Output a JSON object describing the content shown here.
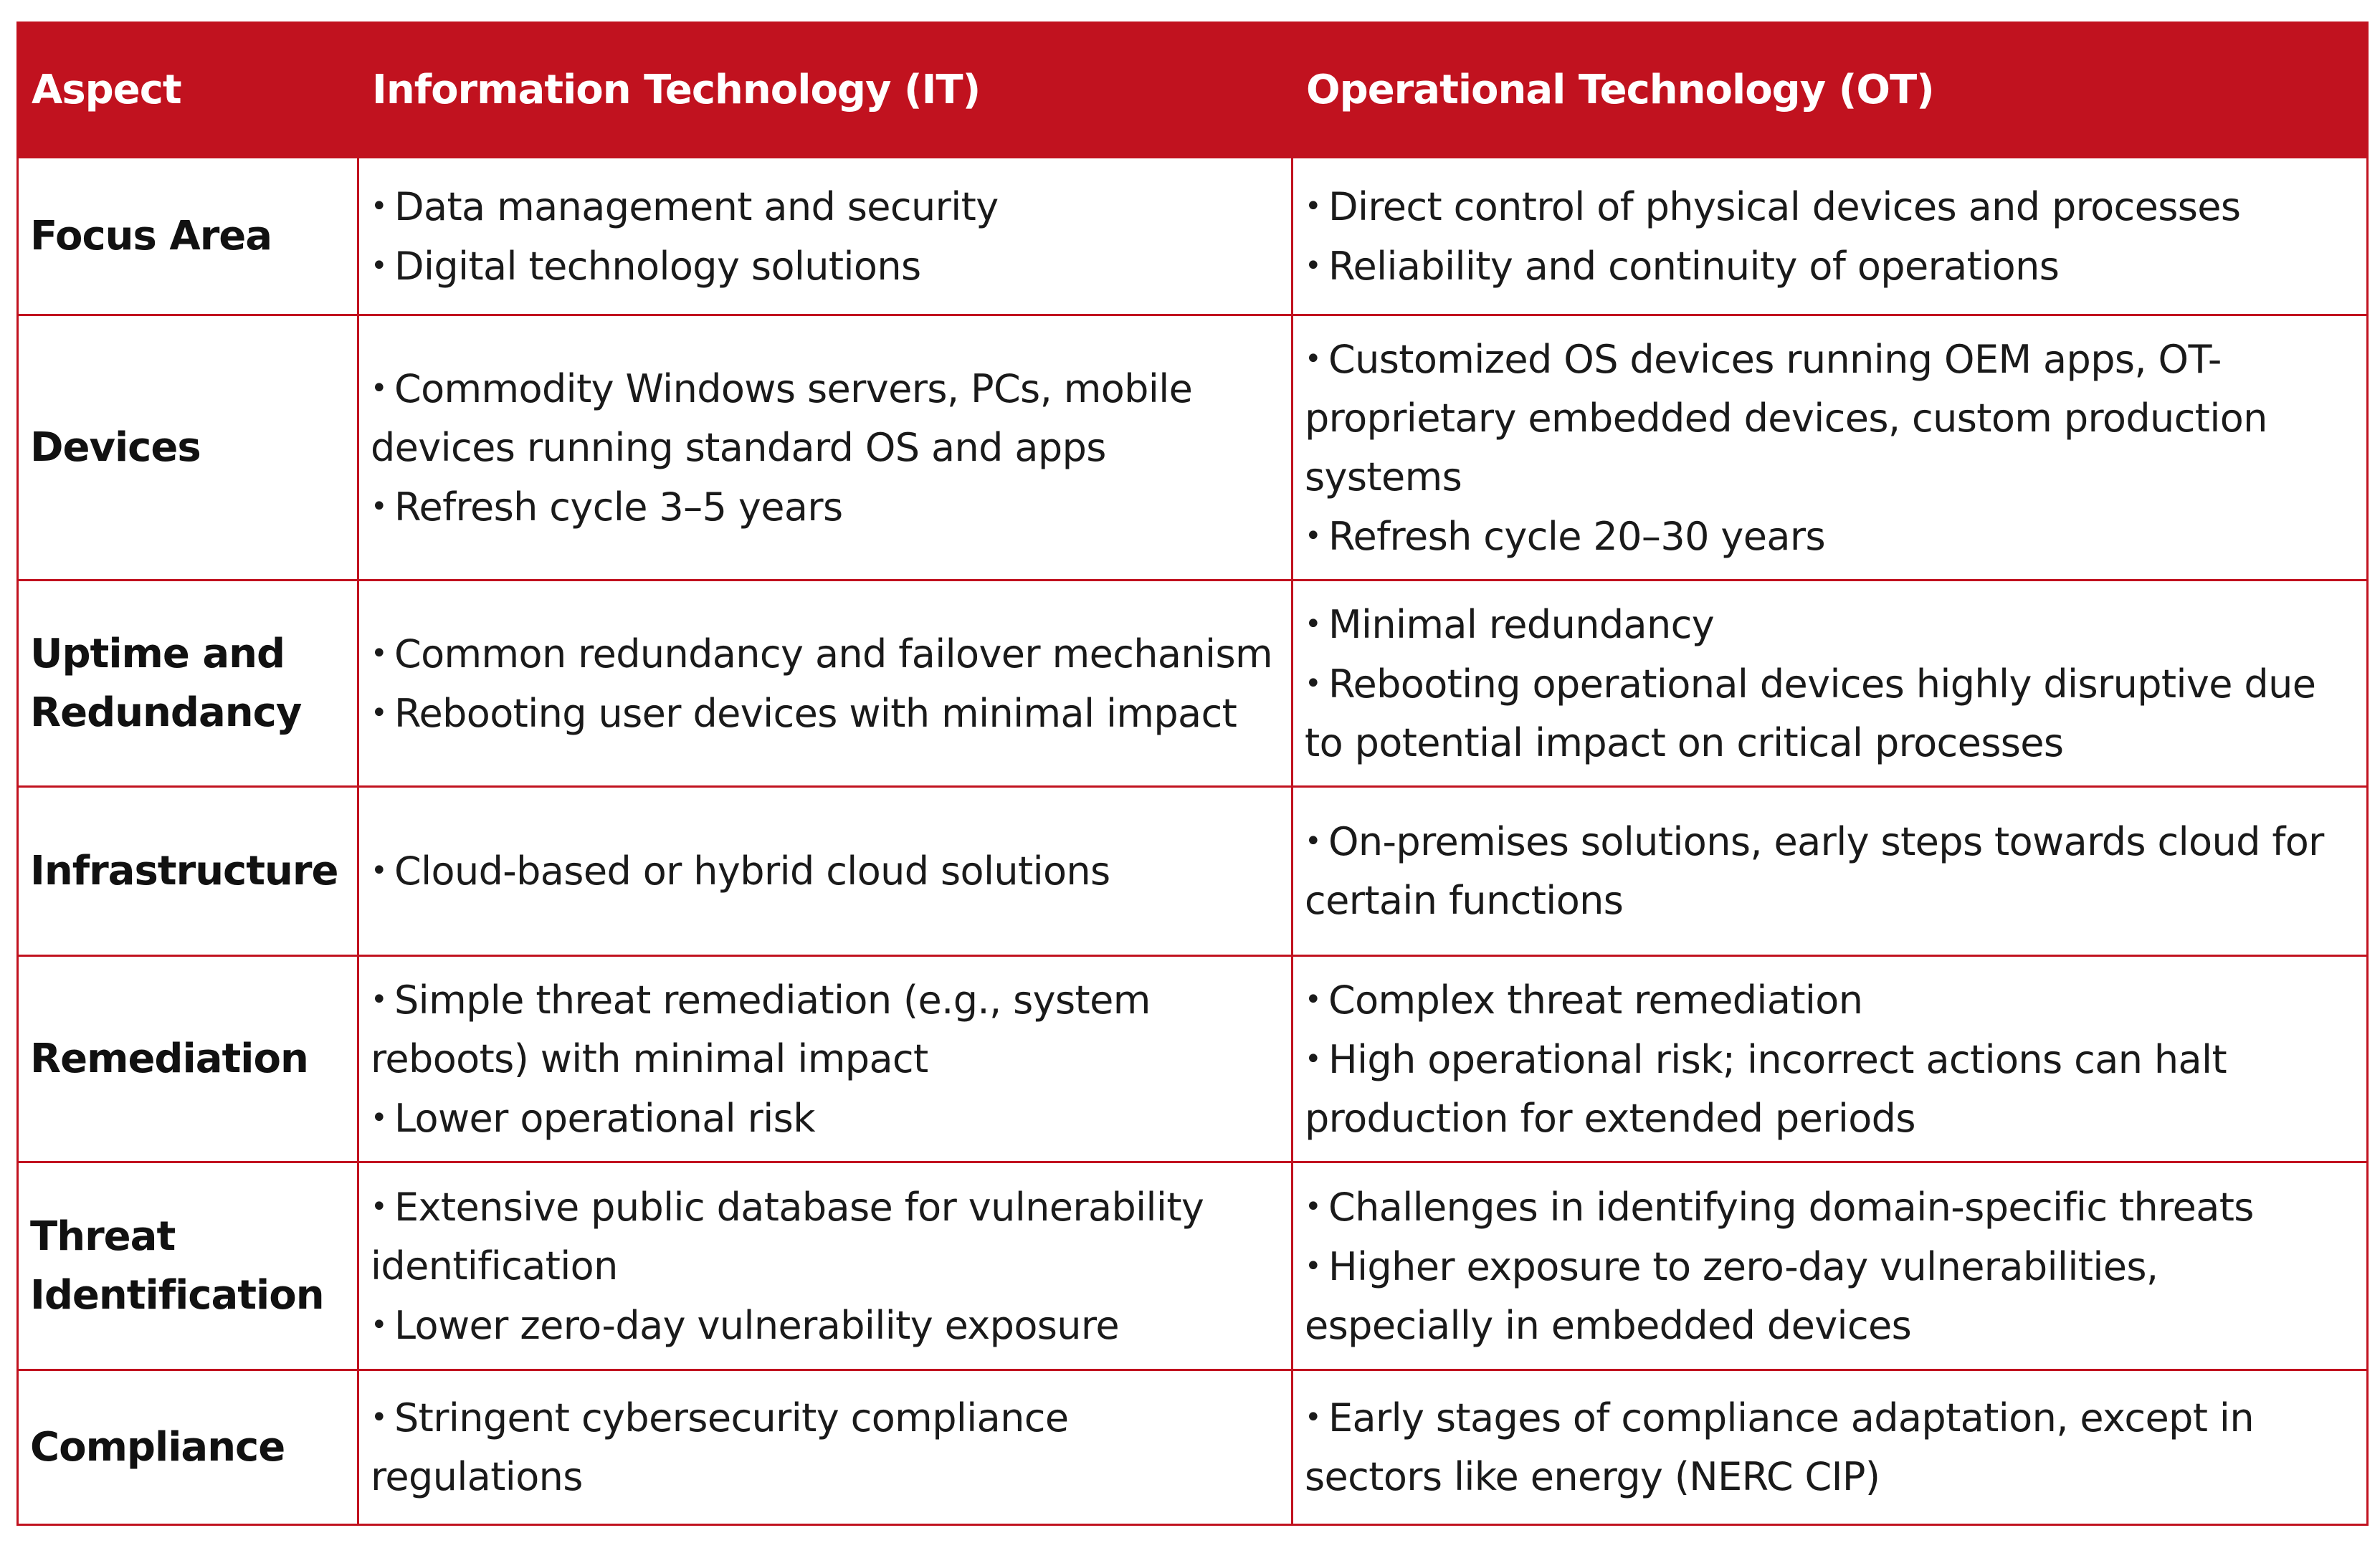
{
  "header": {
    "aspect": "Aspect",
    "it": "Information Technology (IT)",
    "ot": "Operational Technology (OT)"
  },
  "rows": [
    {
      "aspect": "Focus Area",
      "it": [
        "Data management and security",
        "Digital technology solutions"
      ],
      "ot": [
        "Direct control of physical devices and processes",
        "Reliability and continuity of operations"
      ]
    },
    {
      "aspect": "Devices",
      "it": [
        "Commodity Windows servers, PCs, mobile devices running standard OS and apps",
        "Refresh cycle 3–5 years"
      ],
      "ot": [
        "Customized OS devices running OEM apps, OT-proprietary embedded devices, custom production systems",
        "Refresh cycle 20–30 years"
      ]
    },
    {
      "aspect": "Uptime and Redundancy",
      "it": [
        "Common redundancy and failover mechanism",
        "Rebooting user devices with minimal impact"
      ],
      "ot": [
        "Minimal redundancy",
        "Rebooting operational devices highly disruptive due to potential impact on critical processes"
      ]
    },
    {
      "aspect": "Infrastructure",
      "it": [
        "Cloud-based or hybrid cloud solutions"
      ],
      "ot": [
        "On-premises solutions, early steps towards cloud for certain functions"
      ]
    },
    {
      "aspect": "Remediation",
      "it": [
        "Simple threat remediation (e.g., system reboots) with minimal impact",
        "Lower operational risk"
      ],
      "ot": [
        "Complex threat remediation",
        "High operational risk; incorrect actions can halt production for extended periods"
      ]
    },
    {
      "aspect": "Threat Identification",
      "it": [
        "Extensive public database for vulnerability identification",
        "Lower zero-day vulnerability exposure"
      ],
      "ot": [
        "Challenges in identifying domain-specific threats",
        "Higher exposure to zero-day vulnerabilities, especially in embedded devices"
      ]
    },
    {
      "aspect": "Compliance",
      "it": [
        "Stringent cybersecurity compliance regulations"
      ],
      "ot": [
        "Early stages of compliance adaptation, except in sectors like energy (NERC CIP)"
      ]
    }
  ]
}
